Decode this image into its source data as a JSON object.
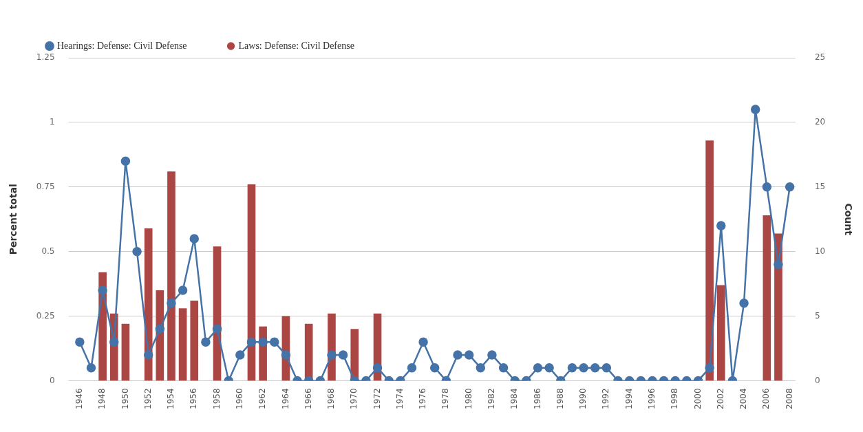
{
  "chart_data": {
    "type": "line",
    "xlabel": null,
    "ylabel": "Percent total",
    "y2label": "Count",
    "categories": [
      "1946",
      null,
      "1948",
      null,
      "1950",
      null,
      "1952",
      null,
      "1954",
      null,
      "1956",
      null,
      "1958",
      null,
      "1960",
      null,
      "1962",
      null,
      "1964",
      null,
      "1966",
      null,
      "1968",
      null,
      "1970",
      null,
      "1972",
      null,
      "1974",
      null,
      "1976",
      null,
      "1978",
      null,
      "1980",
      null,
      "1982",
      null,
      "1984",
      null,
      "1986",
      null,
      "1988",
      null,
      "1990",
      null,
      "1992",
      null,
      "1994",
      null,
      "1996",
      null,
      "1998",
      null,
      "2000",
      null,
      "2002",
      null,
      "2004",
      null,
      "2006",
      null,
      "2008"
    ],
    "series": [
      {
        "name": "Hearings: Defense: Civil Defense",
        "color": "#4572a7",
        "values": [
          0.15,
          0.05,
          0.35,
          0.15,
          0.85,
          0.5,
          0.1,
          0.2,
          0.3,
          0.35,
          0.55,
          0.15,
          0.2,
          0,
          0.1,
          0.15,
          0.15,
          0.15,
          0.1,
          0,
          0,
          0,
          0.1,
          0.1,
          0,
          0,
          0.05,
          0,
          0,
          0.05,
          0.15,
          0.05,
          0,
          0.1,
          0.1,
          0.05,
          0.1,
          0.05,
          0,
          0,
          0.05,
          0.05,
          0,
          0.05,
          0.05,
          0.05,
          0.05,
          0,
          0,
          0,
          0,
          0,
          0,
          0,
          0,
          0.05,
          0.6,
          0,
          0.3,
          1.05,
          0.75,
          0.45,
          0.75
        ]
      },
      {
        "name": "Laws: Defense: Civil Defense",
        "type": "bar",
        "axis": "y2",
        "color": "#aa4643",
        "values": [
          null,
          null,
          8.4,
          5.2,
          4.4,
          null,
          11.8,
          7,
          16.2,
          5.6,
          6.2,
          null,
          10.4,
          null,
          null,
          15.2,
          4.2,
          null,
          5,
          null,
          4.4,
          null,
          5.2,
          null,
          4,
          null,
          5.2,
          null,
          null,
          null,
          null,
          null,
          null,
          null,
          null,
          null,
          null,
          null,
          null,
          null,
          null,
          null,
          null,
          null,
          null,
          null,
          null,
          null,
          null,
          null,
          null,
          null,
          null,
          null,
          null,
          18.6,
          7.4,
          null,
          null,
          null,
          12.8,
          11.4,
          null
        ]
      }
    ],
    "ylim": [
      0,
      1.25
    ],
    "yticks": [
      0,
      0.25,
      0.5,
      0.75,
      1,
      1.25
    ],
    "y2lim": [
      0,
      25
    ],
    "y2ticks": [
      0,
      5,
      10,
      15,
      20,
      25
    ],
    "grid": "y",
    "legend": "top left",
    "marker": "circle",
    "line_style": "solid"
  }
}
